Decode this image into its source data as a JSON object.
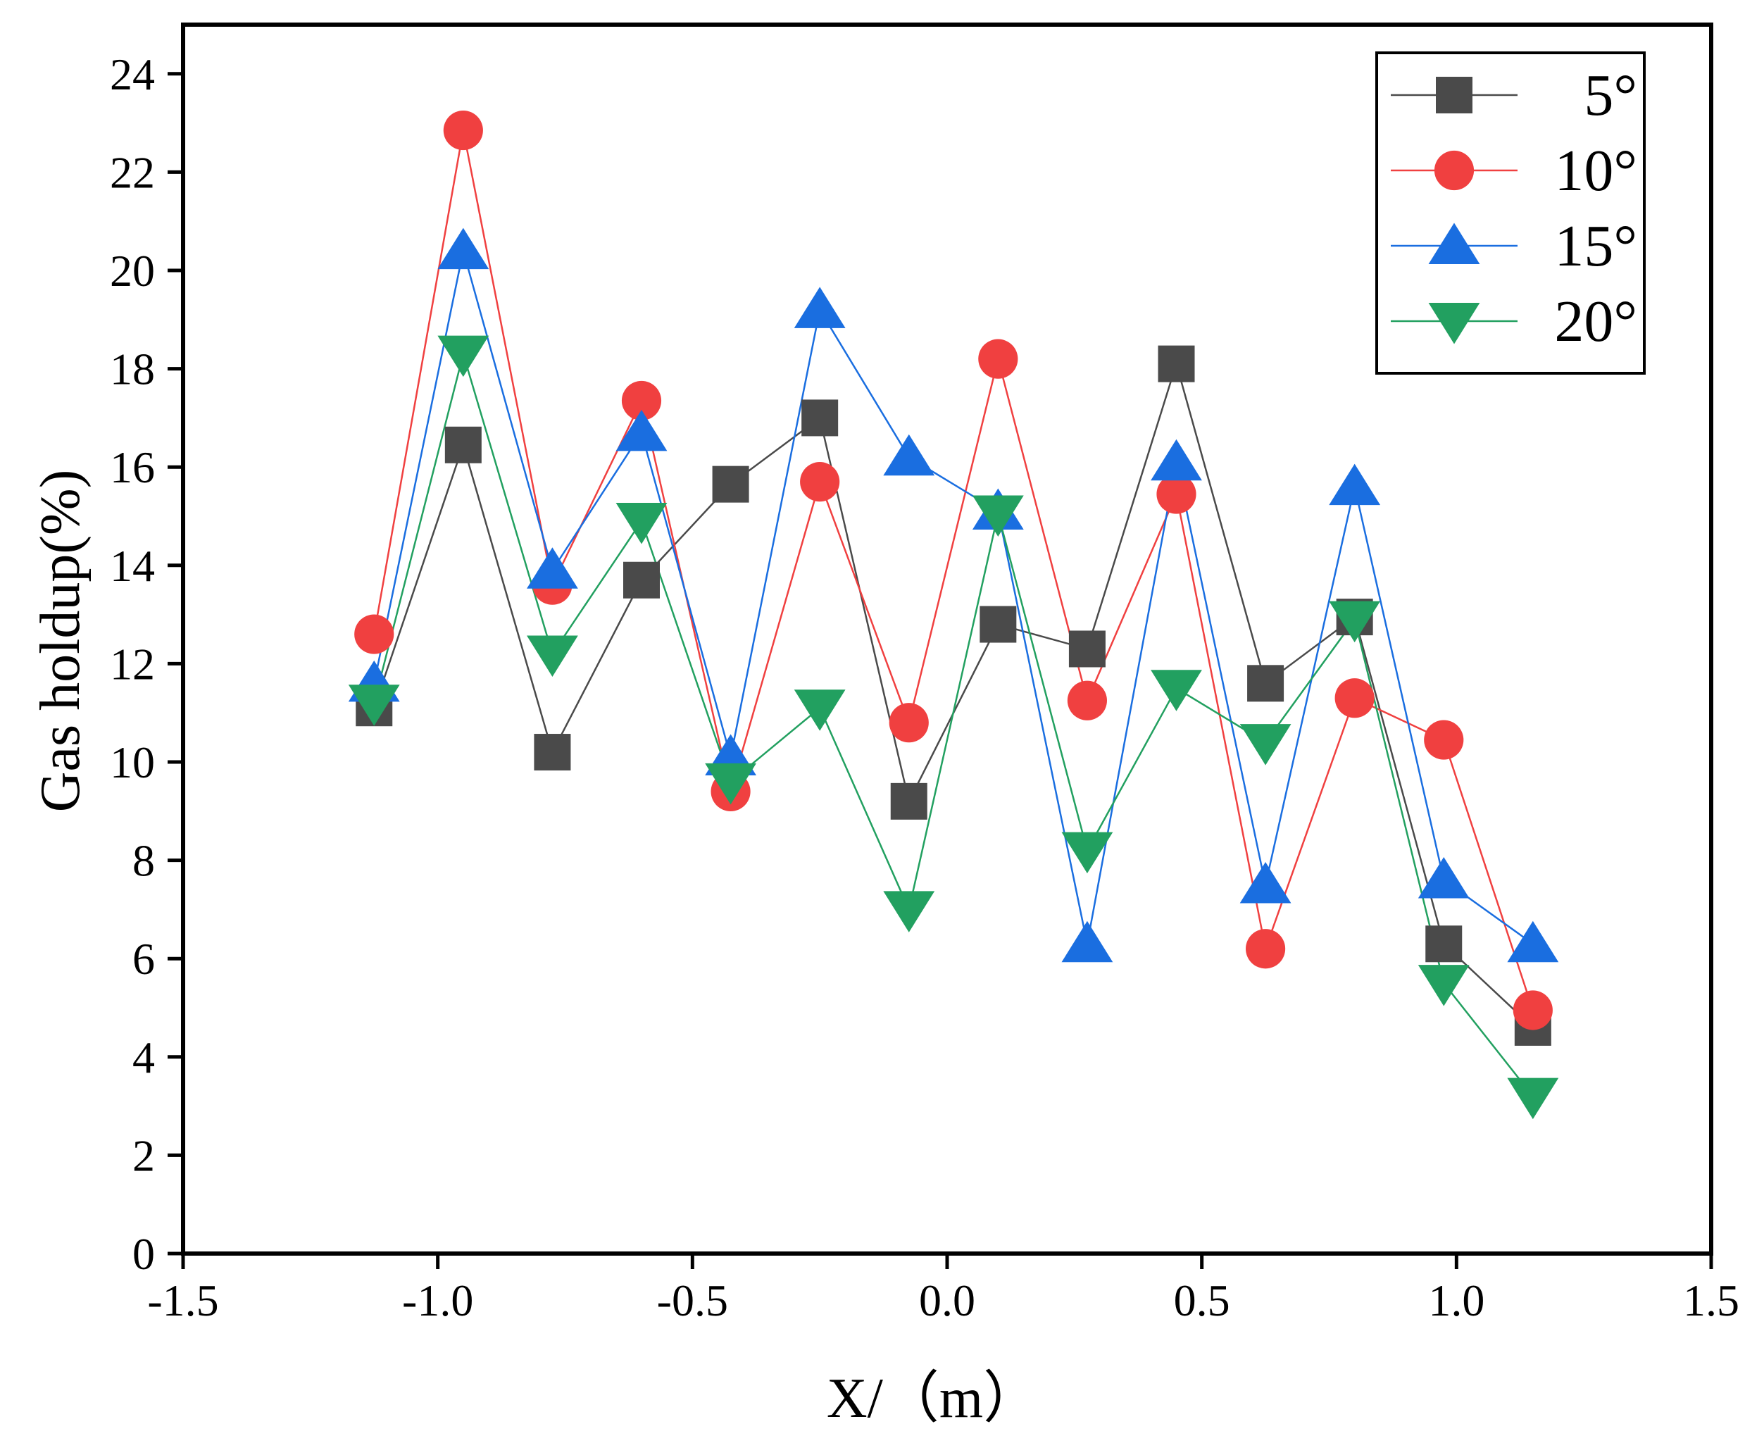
{
  "chart_data": {
    "type": "line",
    "title": "",
    "xlabel": "X/（m）",
    "ylabel": "Gas holdup(%)",
    "xlim": [
      -1.5,
      1.5
    ],
    "ylim": [
      0,
      25
    ],
    "xticks": [
      -1.5,
      -1.0,
      -0.5,
      0.0,
      0.5,
      1.0,
      1.5
    ],
    "xtick_labels": [
      "-1.5",
      "-1.0",
      "-0.5",
      "0.0",
      "0.5",
      "1.0",
      "1.5"
    ],
    "yticks": [
      0,
      2,
      4,
      6,
      8,
      10,
      12,
      14,
      16,
      18,
      20,
      22,
      24
    ],
    "ytick_labels": [
      "0",
      "2",
      "4",
      "6",
      "8",
      "10",
      "12",
      "14",
      "16",
      "18",
      "20",
      "22",
      "24"
    ],
    "grid": false,
    "legend_position": "top-right",
    "x": [
      -1.125,
      -0.95,
      -0.775,
      -0.6,
      -0.425,
      -0.25,
      -0.075,
      0.1,
      0.275,
      0.45,
      0.625,
      0.8,
      0.975,
      1.15
    ],
    "series": [
      {
        "name": "5°",
        "color": "#4a4a4a",
        "marker": "square",
        "values": [
          11.1,
          16.45,
          10.2,
          13.7,
          15.65,
          17.0,
          9.2,
          12.8,
          12.3,
          18.1,
          11.6,
          12.95,
          6.3,
          4.6
        ]
      },
      {
        "name": "10°",
        "color": "#f04040",
        "marker": "circle",
        "values": [
          12.6,
          22.85,
          13.6,
          17.35,
          9.4,
          15.7,
          10.8,
          18.2,
          11.25,
          15.45,
          6.2,
          11.3,
          10.45,
          4.95
        ]
      },
      {
        "name": "15°",
        "color": "#1a6ee0",
        "marker": "triangle-up",
        "values": [
          11.6,
          20.4,
          13.9,
          16.7,
          10.1,
          19.2,
          16.2,
          15.1,
          6.3,
          16.1,
          7.5,
          15.6,
          7.6,
          6.3
        ]
      },
      {
        "name": "20°",
        "color": "#22a060",
        "marker": "triangle-down",
        "values": [
          11.2,
          18.3,
          12.2,
          14.9,
          9.6,
          11.1,
          7.0,
          15.05,
          8.2,
          11.5,
          10.4,
          12.9,
          5.5,
          3.2
        ]
      }
    ]
  }
}
